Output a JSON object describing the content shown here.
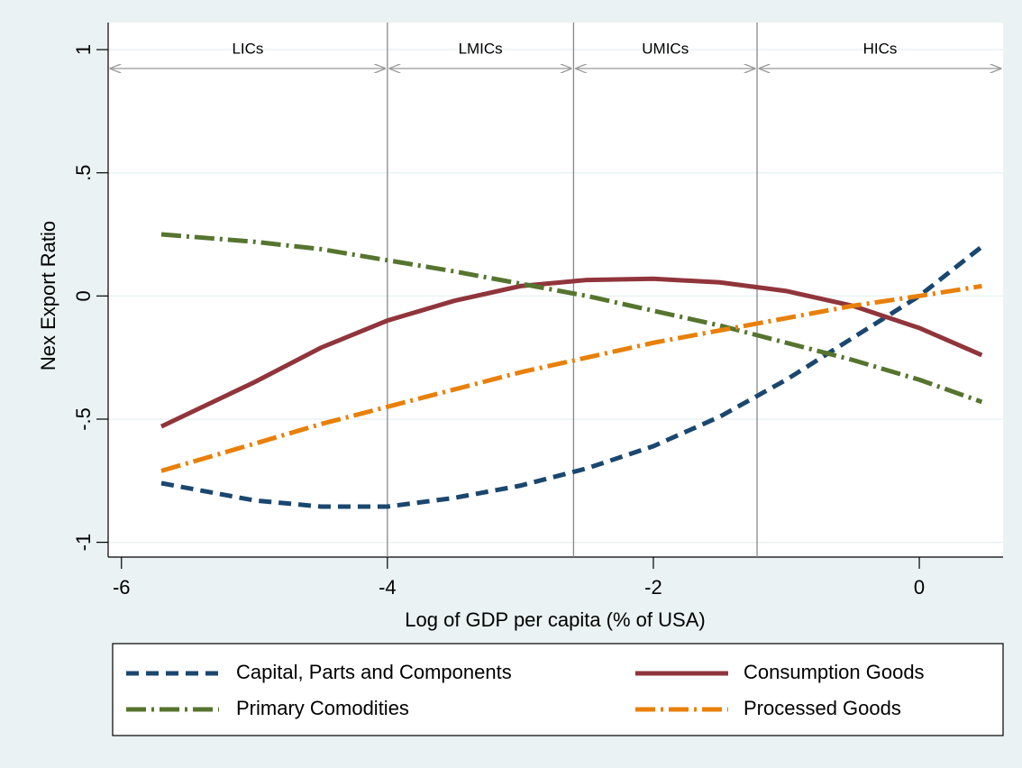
{
  "chart_data": {
    "type": "line",
    "x_label": "Log of GDP per capita (% of USA)",
    "y_label": "Nex Export Ratio",
    "x": [
      -5.7,
      -5,
      -4.5,
      -4,
      -3.5,
      -3,
      -2.5,
      -2,
      -1.5,
      -1,
      -0.5,
      0,
      0.47
    ],
    "series": [
      {
        "name": "Capital, Parts and Components",
        "color": "#1a476f",
        "dash": "dashed",
        "values": [
          -0.76,
          -0.83,
          -0.855,
          -0.855,
          -0.82,
          -0.77,
          -0.7,
          -0.61,
          -0.49,
          -0.34,
          -0.17,
          0.0,
          0.2
        ]
      },
      {
        "name": "Consumption Goods",
        "color": "#90353b",
        "dash": "solid",
        "values": [
          -0.53,
          -0.35,
          -0.21,
          -0.1,
          -0.02,
          0.04,
          0.065,
          0.07,
          0.055,
          0.02,
          -0.04,
          -0.13,
          -0.24
        ]
      },
      {
        "name": "Primary Comodities",
        "color": "#55752f",
        "dash": "dashdot",
        "values": [
          0.25,
          0.22,
          0.19,
          0.145,
          0.1,
          0.05,
          0.0,
          -0.06,
          -0.12,
          -0.19,
          -0.26,
          -0.34,
          -0.43
        ]
      },
      {
        "name": "Processed Goods",
        "color": "#e8800a",
        "dash": "dashdot",
        "values": [
          -0.71,
          -0.6,
          -0.52,
          -0.45,
          -0.38,
          -0.31,
          -0.25,
          -0.19,
          -0.14,
          -0.09,
          -0.04,
          0.0,
          0.04
        ]
      }
    ],
    "xlim": [
      -6.1,
      0.63
    ],
    "ylim": [
      -1.06,
      1.11
    ],
    "xticks": [
      -6,
      -4,
      -2,
      0
    ],
    "yticks": [
      -1,
      {
        "value": -0.5,
        "label": "-.5"
      },
      0,
      {
        "value": 0.5,
        "label": ".5"
      },
      1
    ],
    "grid": true,
    "boundaries": [
      -4,
      -2.6,
      -1.22
    ],
    "regions": [
      "LICs",
      "LMICs",
      "UMICs",
      "HICs"
    ],
    "legend": "bottom"
  }
}
